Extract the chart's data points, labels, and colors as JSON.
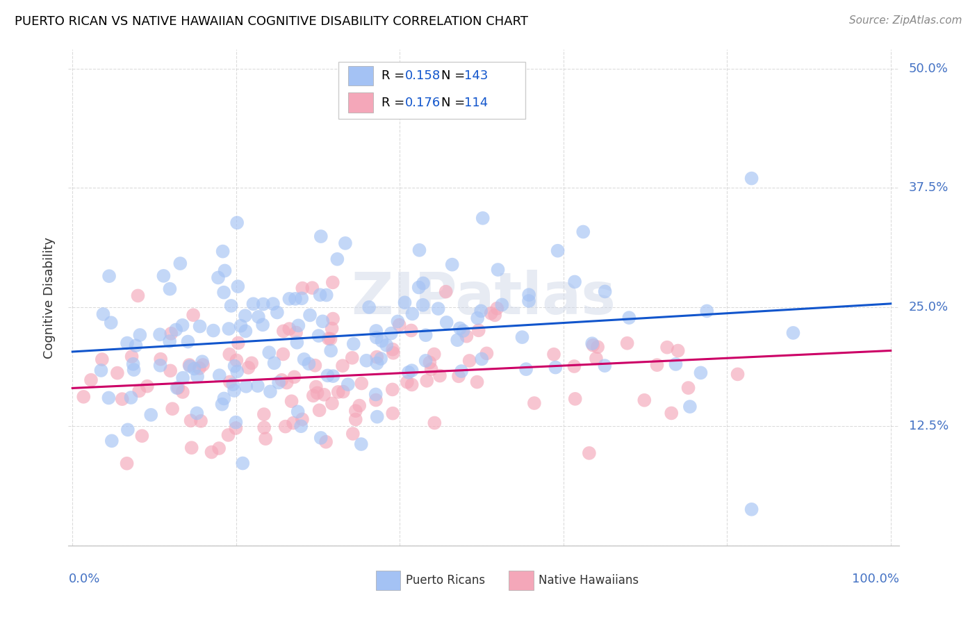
{
  "title": "PUERTO RICAN VS NATIVE HAWAIIAN COGNITIVE DISABILITY CORRELATION CHART",
  "source": "Source: ZipAtlas.com",
  "ylabel": "Cognitive Disability",
  "blue_color": "#a4c2f4",
  "pink_color": "#f4a7b9",
  "blue_line_color": "#1155cc",
  "pink_line_color": "#cc0066",
  "blue_r": 0.158,
  "pink_r": 0.176,
  "blue_n": 143,
  "pink_n": 114,
  "r_n_text_color": "#1155cc",
  "r_n_label_color": "#000000",
  "legend_edge_color": "#cccccc",
  "watermark": "ZIPatlas",
  "watermark_color": "#d0d8e8",
  "background_color": "#ffffff",
  "grid_color": "#cccccc",
  "title_color": "#000000",
  "axis_label_color": "#4472c4",
  "source_color": "#888888",
  "ytick_vals": [
    0.0,
    0.125,
    0.25,
    0.375,
    0.5
  ],
  "ytick_labels": [
    "",
    "12.5%",
    "25.0%",
    "37.5%",
    "50.0%"
  ],
  "ymin": 0.0,
  "ymax": 0.52,
  "xmin": 0.0,
  "xmax": 1.0
}
